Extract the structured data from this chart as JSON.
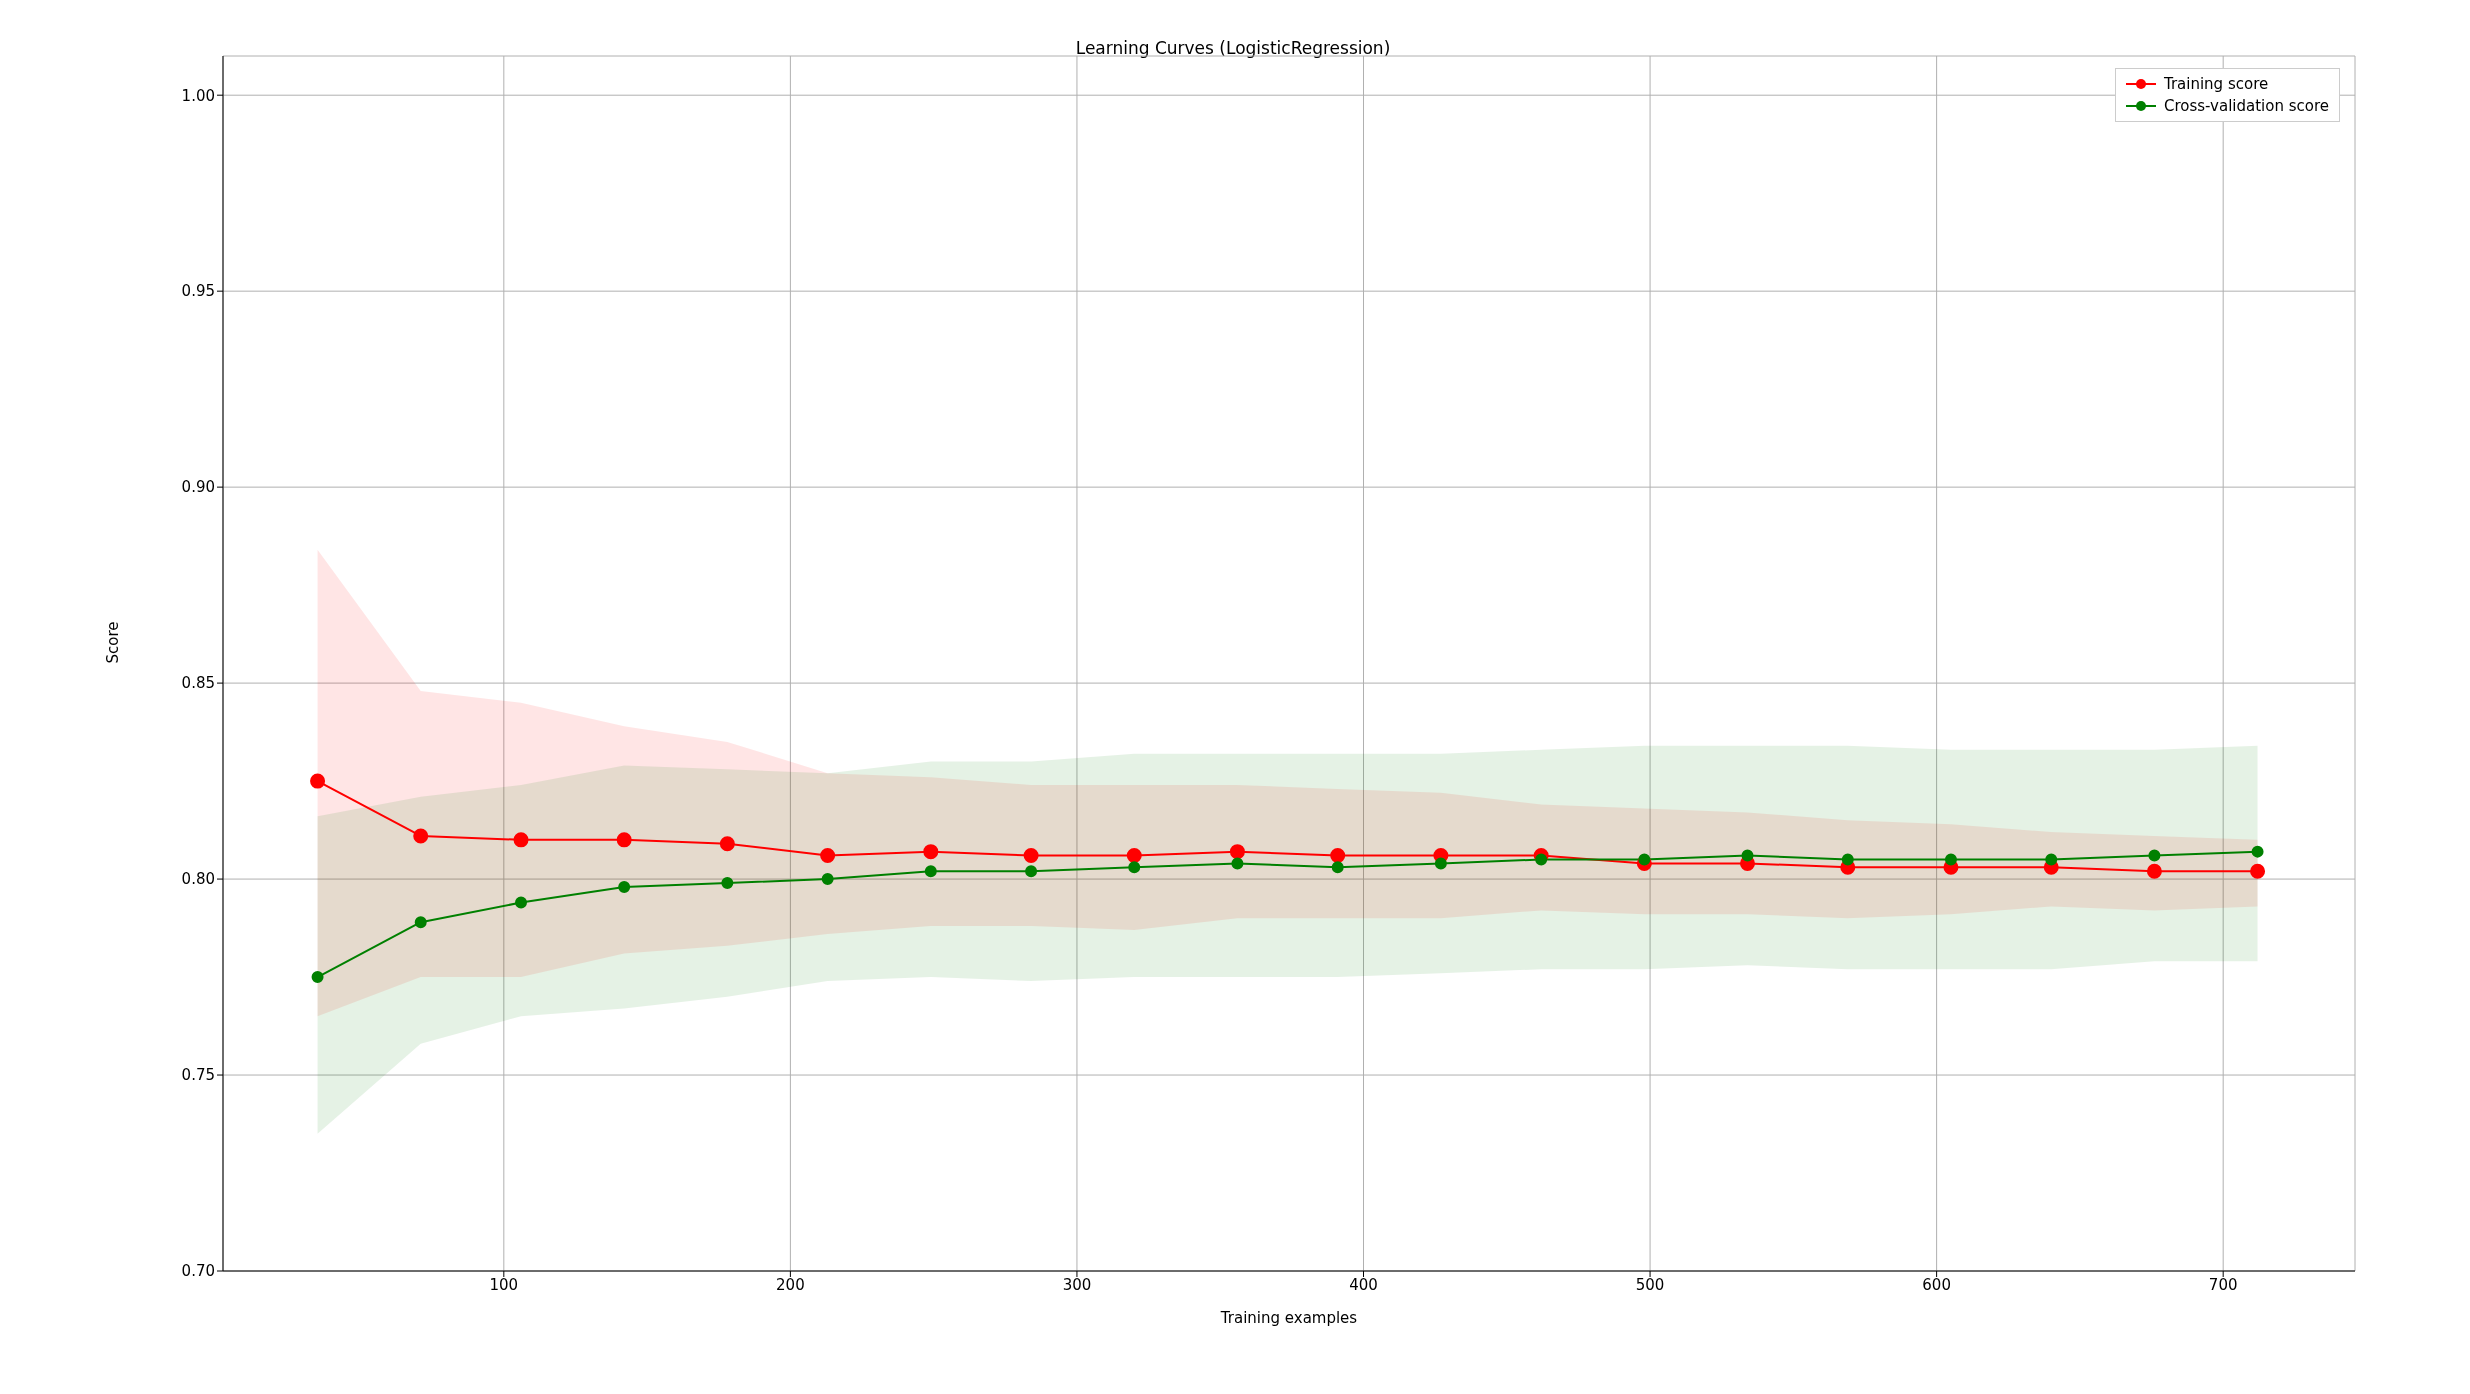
{
  "chart_data": {
    "type": "line",
    "title": "Learning Curves (LogisticRegression)",
    "xlabel": "Training examples",
    "ylabel": "Score",
    "x": [
      35,
      71,
      106,
      142,
      178,
      213,
      249,
      284,
      320,
      356,
      391,
      427,
      462,
      498,
      534,
      569,
      605,
      640,
      676,
      712
    ],
    "series": [
      {
        "name": "Training score",
        "color": "#ff0000",
        "values": [
          0.825,
          0.811,
          0.81,
          0.81,
          0.809,
          0.806,
          0.807,
          0.806,
          0.806,
          0.807,
          0.806,
          0.806,
          0.806,
          0.804,
          0.804,
          0.803,
          0.803,
          0.803,
          0.802,
          0.802
        ],
        "lower": [
          0.765,
          0.775,
          0.775,
          0.781,
          0.783,
          0.786,
          0.788,
          0.788,
          0.787,
          0.79,
          0.79,
          0.79,
          0.792,
          0.791,
          0.791,
          0.79,
          0.791,
          0.793,
          0.792,
          0.793
        ],
        "upper": [
          0.884,
          0.848,
          0.845,
          0.839,
          0.835,
          0.827,
          0.826,
          0.824,
          0.824,
          0.824,
          0.823,
          0.822,
          0.819,
          0.818,
          0.817,
          0.815,
          0.814,
          0.812,
          0.811,
          0.81
        ]
      },
      {
        "name": "Cross-validation score",
        "color": "#008000",
        "values": [
          0.775,
          0.789,
          0.794,
          0.798,
          0.799,
          0.8,
          0.802,
          0.802,
          0.803,
          0.804,
          0.803,
          0.804,
          0.805,
          0.805,
          0.806,
          0.805,
          0.805,
          0.805,
          0.806,
          0.807
        ],
        "lower": [
          0.735,
          0.758,
          0.765,
          0.767,
          0.77,
          0.774,
          0.775,
          0.774,
          0.775,
          0.775,
          0.775,
          0.776,
          0.777,
          0.777,
          0.778,
          0.777,
          0.777,
          0.777,
          0.779,
          0.779
        ],
        "upper": [
          0.816,
          0.821,
          0.824,
          0.829,
          0.828,
          0.827,
          0.83,
          0.83,
          0.832,
          0.832,
          0.832,
          0.832,
          0.833,
          0.834,
          0.834,
          0.834,
          0.833,
          0.833,
          0.833,
          0.834
        ]
      }
    ],
    "xlim": [
      2,
      746
    ],
    "xticks": [
      100,
      200,
      300,
      400,
      500,
      600,
      700
    ],
    "ylim": [
      0.7,
      1.01
    ],
    "yticks": [
      {
        "value": 0.7,
        "label": "0.70"
      },
      {
        "value": 0.75,
        "label": "0.75"
      },
      {
        "value": 0.8,
        "label": "0.80"
      },
      {
        "value": 0.85,
        "label": "0.85"
      },
      {
        "value": 0.9,
        "label": "0.90"
      },
      {
        "value": 0.95,
        "label": "0.95"
      },
      {
        "value": 1.0,
        "label": "1.00"
      }
    ],
    "grid": true,
    "legend": "top right",
    "marker": "circle",
    "line_style": "solid"
  }
}
